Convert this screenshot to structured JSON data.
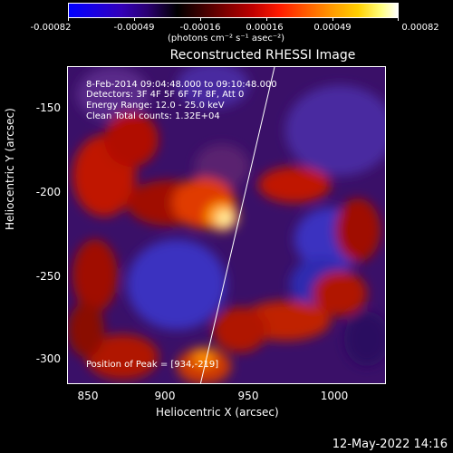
{
  "colorbar": {
    "tick_labels": [
      "-0.00082",
      "-0.00049",
      "-0.00016",
      "0.00016",
      "0.00049",
      "0.00082"
    ],
    "units": "(photons cm⁻² s⁻¹ asec⁻²)"
  },
  "plot": {
    "title": "Reconstructed RHESSI Image",
    "info": [
      "8-Feb-2014 09:04:48.000 to 09:10:48.000",
      "Detectors: 3F 4F 5F 6F 7F 8F, Att 0",
      "Energy Range: 12.0 - 25.0 keV",
      "Clean     Total counts: 1.32E+04"
    ],
    "peak": "Position of Peak = [934,-219]",
    "x_axis_label": "Heliocentric X (arcsec)",
    "y_axis_label": "Heliocentric Y (arcsec)",
    "x_ticks": [
      "850",
      "900",
      "950",
      "1000"
    ],
    "y_ticks": [
      "-150",
      "-200",
      "-250",
      "-300"
    ]
  },
  "footer": {
    "timestamp": "12-May-2022 14:16"
  }
}
